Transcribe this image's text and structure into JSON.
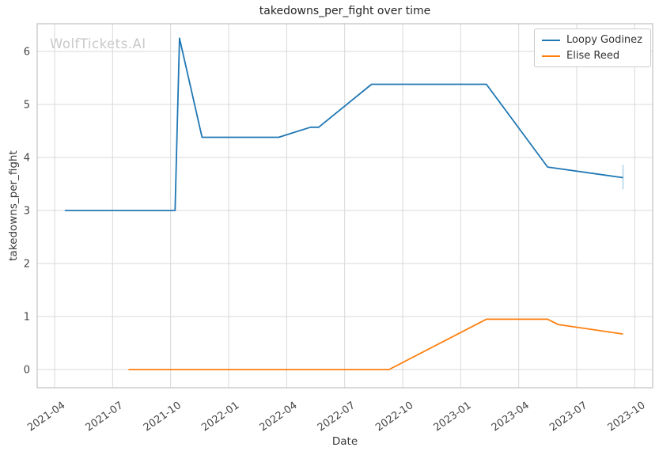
{
  "watermark": {
    "text": "WolfTickets.AI",
    "color": "#c9c9c9"
  },
  "chart_data": {
    "type": "line",
    "title": "takedowns_per_fight over time",
    "xlabel": "Date",
    "ylabel": "takedowns_per_fight",
    "grid": true,
    "legend_position": "upper right",
    "x_ticks": [
      "2021-04",
      "2021-07",
      "2021-10",
      "2022-01",
      "2022-04",
      "2022-07",
      "2022-10",
      "2023-01",
      "2023-04",
      "2023-07",
      "2023-10"
    ],
    "y_ticks": [
      0,
      1,
      2,
      3,
      4,
      5,
      6
    ],
    "ylim": [
      -0.34,
      6.52
    ],
    "xlim": [
      "2021-03-05",
      "2023-10-29"
    ],
    "axis_colors": {
      "grid": "#d9d9d9",
      "spine": "#c0c0c0",
      "tick_label": "#444444",
      "title": "#262626"
    },
    "series": [
      {
        "name": "Loopy Godinez",
        "color": "#1f77b4",
        "points": [
          [
            "2021-04-17",
            3.0
          ],
          [
            "2021-10-08",
            3.0
          ],
          [
            "2021-10-15",
            6.25
          ],
          [
            "2021-11-20",
            4.38
          ],
          [
            "2022-03-19",
            4.38
          ],
          [
            "2022-05-08",
            4.57
          ],
          [
            "2022-05-21",
            4.57
          ],
          [
            "2022-08-13",
            5.38
          ],
          [
            "2023-02-11",
            5.38
          ],
          [
            "2023-05-16",
            3.82
          ],
          [
            "2023-09-13",
            3.62
          ]
        ],
        "end_marker": {
          "date": "2023-09-13",
          "from": 3.4,
          "to": 3.86,
          "color": "#b3d7ea"
        }
      },
      {
        "name": "Elise Reed",
        "color": "#ff7f0e",
        "points": [
          [
            "2021-07-26",
            0.0
          ],
          [
            "2022-09-10",
            0.0
          ],
          [
            "2023-02-11",
            0.95
          ],
          [
            "2023-05-16",
            0.95
          ],
          [
            "2023-06-02",
            0.85
          ],
          [
            "2023-09-13",
            0.67
          ]
        ]
      }
    ]
  }
}
